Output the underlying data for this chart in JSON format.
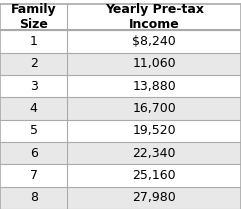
{
  "col1_header": "Family\nSize",
  "col2_header": "Yearly Pre-tax\nIncome",
  "rows": [
    [
      "1",
      "$8,240"
    ],
    [
      "2",
      "11,060"
    ],
    [
      "3",
      "13,880"
    ],
    [
      "4",
      "16,700"
    ],
    [
      "5",
      "19,520"
    ],
    [
      "6",
      "22,340"
    ],
    [
      "7",
      "25,160"
    ],
    [
      "8",
      "27,980"
    ]
  ],
  "bg_color_odd": "#ffffff",
  "bg_color_even": "#e8e8e8",
  "header_bg": "#ffffff",
  "border_color": "#aaaaaa",
  "text_color": "#000000",
  "font_size": 9,
  "header_font_size": 9
}
